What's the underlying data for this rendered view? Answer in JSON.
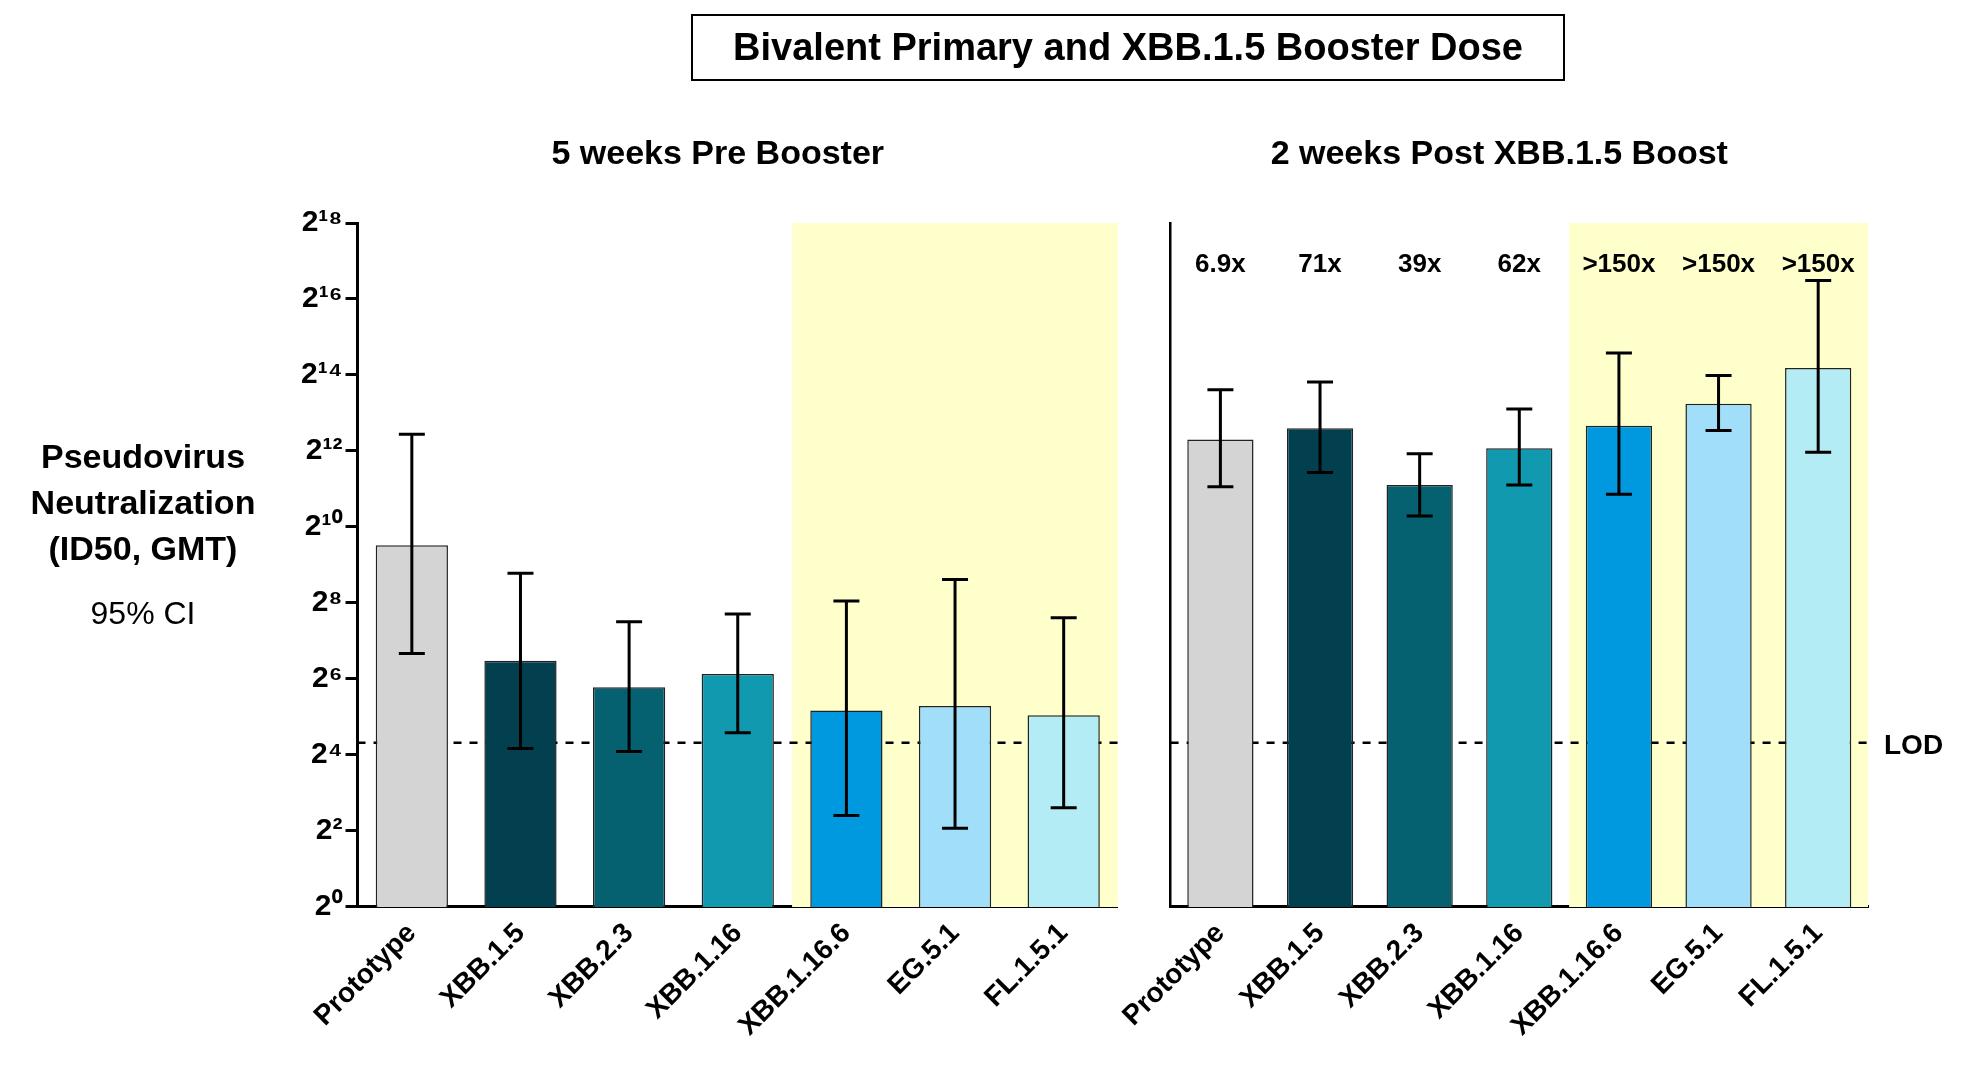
{
  "chart_data": [
    {
      "type": "bar",
      "title": "Bivalent Primary and XBB.1.5 Booster Dose",
      "subtitle": "5 weeks Pre Booster",
      "ylabel": "Pseudovirus Neutralization (ID50, GMT)",
      "categories": [
        "Prototype",
        "XBB.1.5",
        "XBB.2.3",
        "XBB.1.16",
        "XBB.1.16.6",
        "EG.5.1",
        "FL.1.5.1"
      ],
      "values": [
        734,
        89,
        55,
        70,
        36,
        39,
        33
      ],
      "colors": [
        "#d4d4d4",
        "#03404f",
        "#056070",
        "#1199b0",
        "#0099e0",
        "#a0defa",
        "#b4ecf5"
      ],
      "errors": [
        [
          102,
          5560
        ],
        [
          18,
          440
        ],
        [
          17,
          182
        ],
        [
          24,
          209
        ],
        [
          5.3,
          265
        ],
        [
          4.2,
          392
        ],
        [
          6.1,
          195
        ]
      ],
      "log": "y",
      "ylim": [
        1,
        262144
      ],
      "yticks": [
        {
          "value": 1,
          "label": "2⁰"
        },
        {
          "value": 4,
          "label": "2²"
        },
        {
          "value": 16,
          "label": "2⁴"
        },
        {
          "value": 64,
          "label": "2⁶"
        },
        {
          "value": 256,
          "label": "2⁸"
        },
        {
          "value": 1024,
          "label": "2¹⁰"
        },
        {
          "value": 4096,
          "label": "2¹²"
        },
        {
          "value": 16384,
          "label": "2¹⁴"
        },
        {
          "value": 65536,
          "label": "2¹⁶"
        },
        {
          "value": 262144,
          "label": "2¹⁸"
        }
      ],
      "grid": false,
      "legend": false,
      "bands": [
        {
          "axis": "x",
          "from": "XBB.1.16.6",
          "to": "FL.1.5.1",
          "color": "#ffffcc"
        }
      ],
      "ref_lines": [
        {
          "axis": "y",
          "value": 20,
          "line_style": "dashed",
          "color": "#000000"
        }
      ],
      "annotations": [
        "95% CI"
      ]
    },
    {
      "type": "bar",
      "subtitle": "2 weeks Post XBB.1.5 Boost",
      "categories": [
        "Prototype",
        "XBB.1.5",
        "XBB.2.3",
        "XBB.1.16",
        "XBB.1.16.6",
        "EG.5.1",
        "FL.1.5.1"
      ],
      "values": [
        5040,
        6210,
        2200,
        4300,
        6500,
        9700,
        18600
      ],
      "colors": [
        "#d4d4d4",
        "#03404f",
        "#056070",
        "#1199b0",
        "#0099e0",
        "#a0defa",
        "#b4ecf5"
      ],
      "errors": [
        [
          2130,
          12500
        ],
        [
          2760,
          14400
        ],
        [
          1250,
          3900
        ],
        [
          2200,
          8800
        ],
        [
          1860,
          24500
        ],
        [
          5960,
          16200
        ],
        [
          4010,
          92000
        ]
      ],
      "log": "y",
      "ylim": [
        1,
        262144
      ],
      "tick_labels": "x",
      "grid": false,
      "legend": false,
      "bands": [
        {
          "axis": "x",
          "from": "XBB.1.16.6",
          "to": "FL.1.5.1",
          "color": "#ffffcc"
        }
      ],
      "ref_lines": [
        {
          "axis": "y",
          "value": 20,
          "label": "LOD",
          "line_style": "dashed",
          "color": "#000000"
        }
      ],
      "annotations": [
        "6.9x",
        "71x",
        "39x",
        "62x",
        ">150x",
        ">150x",
        ">150x"
      ]
    }
  ]
}
